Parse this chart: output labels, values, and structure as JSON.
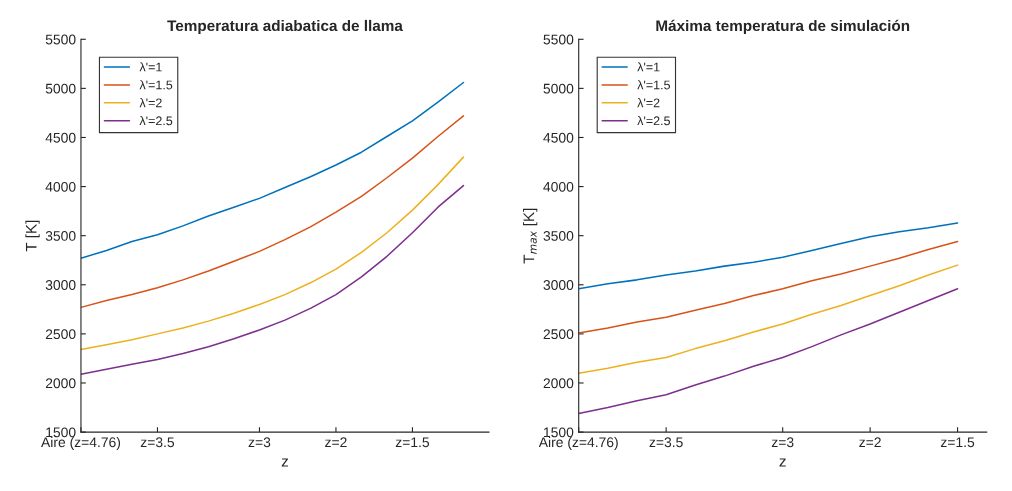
{
  "chart_data": [
    {
      "type": "line",
      "title": "Temperatura adiabatica de llama",
      "xlabel": "z",
      "ylabel": "T [K]",
      "categories": [
        "Aire (z=4.76)",
        null,
        null,
        "z=3.5",
        null,
        null,
        null,
        "z=3",
        null,
        null,
        "z=2",
        null,
        null,
        "z=1.5",
        null,
        null
      ],
      "ylim": [
        1500,
        5500
      ],
      "yticks": [
        1500,
        2000,
        2500,
        3000,
        3500,
        4000,
        4500,
        5000,
        5500
      ],
      "legend": "top left",
      "series": [
        {
          "name": "λ'=1",
          "color": "#0072bd",
          "values": [
            3270,
            3350,
            3440,
            3510,
            3600,
            3700,
            3790,
            3880,
            3990,
            4100,
            4220,
            4350,
            4510,
            4670,
            4860,
            5060
          ]
        },
        {
          "name": "λ'=1.5",
          "color": "#d95319",
          "values": [
            2770,
            2840,
            2900,
            2970,
            3050,
            3140,
            3240,
            3340,
            3460,
            3590,
            3740,
            3900,
            4090,
            4290,
            4510,
            4720
          ]
        },
        {
          "name": "λ'=2",
          "color": "#edb120",
          "values": [
            2340,
            2390,
            2440,
            2500,
            2560,
            2630,
            2710,
            2800,
            2900,
            3020,
            3160,
            3330,
            3530,
            3760,
            4020,
            4300
          ]
        },
        {
          "name": "λ'=2.5",
          "color": "#7e2f8e",
          "values": [
            2090,
            2140,
            2190,
            2240,
            2300,
            2370,
            2450,
            2540,
            2640,
            2760,
            2900,
            3080,
            3290,
            3530,
            3790,
            4010
          ]
        }
      ]
    },
    {
      "type": "line",
      "title": "Máxima temperatura de simulación",
      "xlabel": "z",
      "ylabel": "T$_{max}$ [K]",
      "categories": [
        "Aire (z=4.76)",
        null,
        null,
        "z=3.5",
        null,
        null,
        null,
        "z=3",
        null,
        null,
        "z=2",
        null,
        null,
        "z=1.5"
      ],
      "ylim": [
        1500,
        5500
      ],
      "yticks": [
        1500,
        2000,
        2500,
        3000,
        3500,
        4000,
        4500,
        5000,
        5500
      ],
      "legend": "top left",
      "series": [
        {
          "name": "λ'=1",
          "color": "#0072bd",
          "values": [
            2960,
            3010,
            3050,
            3100,
            3140,
            3190,
            3230,
            3280,
            3350,
            3420,
            3490,
            3540,
            3580,
            3630
          ]
        },
        {
          "name": "λ'=1.5",
          "color": "#d95319",
          "values": [
            2510,
            2560,
            2620,
            2670,
            2740,
            2810,
            2890,
            2960,
            3040,
            3110,
            3190,
            3270,
            3360,
            3440
          ]
        },
        {
          "name": "λ'=2",
          "color": "#edb120",
          "values": [
            2100,
            2150,
            2210,
            2260,
            2350,
            2430,
            2520,
            2600,
            2700,
            2790,
            2890,
            2990,
            3100,
            3200
          ]
        },
        {
          "name": "λ'=2.5",
          "color": "#7e2f8e",
          "values": [
            1690,
            1750,
            1820,
            1880,
            1980,
            2070,
            2170,
            2260,
            2370,
            2490,
            2600,
            2720,
            2840,
            2960
          ]
        }
      ]
    }
  ]
}
